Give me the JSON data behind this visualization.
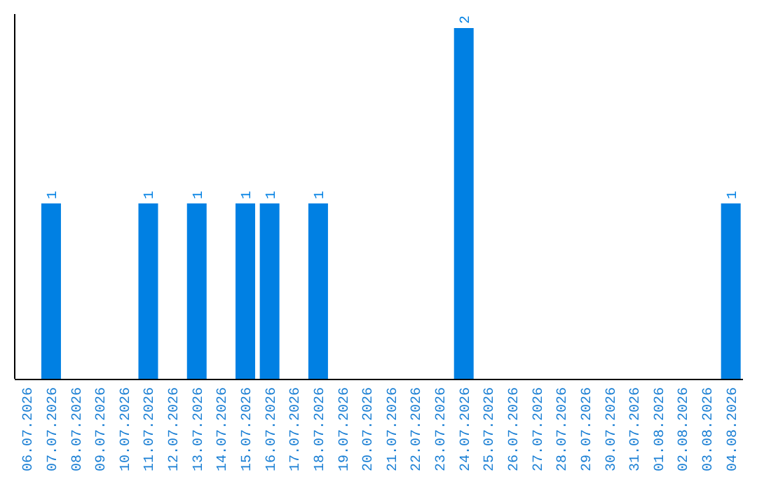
{
  "chart_data": {
    "type": "bar",
    "categories": [
      "06.07.2026",
      "07.07.2026",
      "08.07.2026",
      "09.07.2026",
      "10.07.2026",
      "11.07.2026",
      "12.07.2026",
      "13.07.2026",
      "14.07.2026",
      "15.07.2026",
      "16.07.2026",
      "17.07.2026",
      "18.07.2026",
      "19.07.2026",
      "20.07.2026",
      "21.07.2026",
      "22.07.2026",
      "23.07.2026",
      "24.07.2026",
      "25.07.2026",
      "26.07.2026",
      "27.07.2026",
      "28.07.2026",
      "29.07.2026",
      "30.07.2026",
      "31.07.2026",
      "01.08.2026",
      "02.08.2026",
      "03.08.2026",
      "04.08.2026"
    ],
    "values": [
      0,
      1,
      0,
      0,
      0,
      1,
      0,
      1,
      0,
      1,
      1,
      0,
      1,
      0,
      0,
      0,
      0,
      0,
      2,
      0,
      0,
      0,
      0,
      0,
      0,
      0,
      0,
      0,
      0,
      1
    ],
    "value_labels": [
      null,
      "1",
      null,
      null,
      null,
      "1",
      null,
      "1",
      null,
      "1",
      "1",
      null,
      "1",
      null,
      null,
      null,
      null,
      null,
      "2",
      null,
      null,
      null,
      null,
      null,
      null,
      null,
      null,
      null,
      null,
      "1"
    ],
    "color": "#0080e3"
  }
}
